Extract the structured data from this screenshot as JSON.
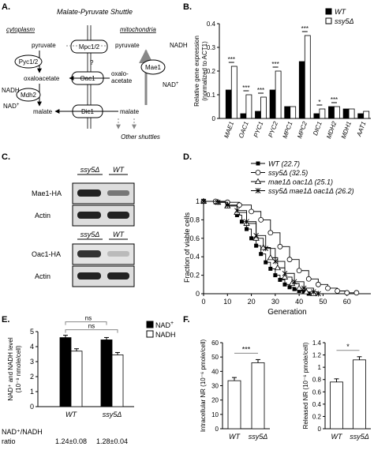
{
  "panels": {
    "A": {
      "letter": "A.",
      "title": "Malate-Pyruvate Shuttle",
      "cytoplasm": "cytoplasm",
      "mitochondria": "mitochondria",
      "pyruvate": "pyruvate",
      "oxaloacetate": "oxaloacetate",
      "malate": "malate",
      "nadh": "NADH",
      "nad": "NAD",
      "nad_sup": "+",
      "mpc": "Mpc1/2",
      "pyc": "Pyc1/2",
      "oac": "Oac1",
      "mdh": "Mdh2",
      "mae": "Mae1",
      "dic": "Dic1",
      "question": "?",
      "oxalo_m1": "oxalo-",
      "oxalo_m2": "acetate",
      "other_shuttles": "Other shuttles"
    },
    "C": {
      "letter": "C.",
      "lane1": "ssy5Δ",
      "lane2": "WT",
      "rows": [
        "Mae1-HA",
        "Actin",
        "Oac1-HA",
        "Actin"
      ]
    },
    "F": {
      "letter": "F."
    }
  },
  "colors": {
    "black": "#000000",
    "white": "#ffffff",
    "axis": "#000000"
  },
  "chart_data": [
    {
      "panel": "B",
      "type": "bar",
      "letter": "B.",
      "ylabel": "Relative gene expression (normalized to ACT1)",
      "ylabel_l1": "Relative gene expression",
      "ylabel_l2": "(normalized to ACT1)",
      "ylim": [
        0,
        0.4
      ],
      "yticks": [
        "0",
        "0.1",
        "0.2",
        "0.3",
        "0.4"
      ],
      "categories": [
        "MAE1",
        "OAC1",
        "PYC1",
        "PYC2",
        "MPC1",
        "MPC2",
        "DIC1",
        "MDH2",
        "MDH1",
        "AAT1"
      ],
      "series": [
        {
          "name": "WT",
          "color": "#000000",
          "values": [
            0.12,
            0.02,
            0.03,
            0.12,
            0.05,
            0.24,
            0.02,
            0.05,
            0.04,
            0.02
          ]
        },
        {
          "name": "ssy5Δ",
          "color": "#ffffff",
          "values": [
            0.22,
            0.1,
            0.09,
            0.2,
            0.05,
            0.35,
            0.04,
            0.05,
            0.04,
            0.03
          ]
        }
      ],
      "significance": [
        "***",
        "***",
        "***",
        "***",
        "",
        "***",
        "*",
        "***",
        "",
        ""
      ]
    },
    {
      "panel": "D",
      "type": "line",
      "letter": "D.",
      "xlabel": "Generation",
      "ylabel": "Fraction of viable cells",
      "xlim": [
        0,
        70
      ],
      "ylim": [
        0,
        1
      ],
      "xticks": [
        "0",
        "10",
        "20",
        "30",
        "40",
        "50",
        "60"
      ],
      "yticks": [
        "0",
        "0.2",
        "0.4",
        "0.6",
        "0.8",
        "1"
      ],
      "series": [
        {
          "name": "WT",
          "median": "(22.7)",
          "marker": "square",
          "x": [
            0,
            5,
            10,
            14,
            16,
            18,
            20,
            22,
            24,
            26,
            28,
            30,
            32,
            34,
            36,
            38,
            40,
            42,
            44
          ],
          "y": [
            1,
            0.99,
            0.95,
            0.85,
            0.78,
            0.7,
            0.6,
            0.52,
            0.43,
            0.34,
            0.27,
            0.2,
            0.15,
            0.1,
            0.07,
            0.05,
            0.03,
            0.02,
            0
          ]
        },
        {
          "name": "ssy5Δ",
          "median": "(32.5)",
          "marker": "circle",
          "x": [
            0,
            5,
            10,
            15,
            20,
            24,
            28,
            32,
            36,
            40,
            44,
            48,
            52,
            56,
            60,
            64
          ],
          "y": [
            1,
            1,
            0.99,
            0.96,
            0.89,
            0.8,
            0.66,
            0.51,
            0.37,
            0.25,
            0.16,
            0.1,
            0.06,
            0.03,
            0.01,
            0.01
          ]
        },
        {
          "name": "mae1Δ oac1Δ",
          "median": "(25.1)",
          "marker": "triangle",
          "x": [
            0,
            6,
            10,
            14,
            18,
            22,
            25,
            28,
            31,
            34,
            37,
            40,
            43,
            46
          ],
          "y": [
            1,
            0.99,
            0.95,
            0.88,
            0.76,
            0.6,
            0.5,
            0.39,
            0.28,
            0.18,
            0.11,
            0.06,
            0.02,
            0
          ]
        },
        {
          "name": "ssy5Δ mae1Δ oac1Δ",
          "median": "(26.2)",
          "marker": "star",
          "x": [
            0,
            6,
            10,
            14,
            18,
            22,
            26,
            30,
            34,
            38,
            42,
            46,
            48
          ],
          "y": [
            1,
            0.99,
            0.96,
            0.9,
            0.78,
            0.63,
            0.49,
            0.35,
            0.22,
            0.13,
            0.06,
            0.02,
            0
          ]
        }
      ]
    },
    {
      "panel": "E",
      "type": "bar",
      "letter": "E.",
      "ylabel_l1": "NAD⁺ and NADH level",
      "ylabel_l2": "(10⁻⁸ nmole/cell)",
      "ylim": [
        0,
        5
      ],
      "yticks": [
        "0",
        "1",
        "2",
        "3",
        "4",
        "5"
      ],
      "categories": [
        "WT",
        "ssy5Δ"
      ],
      "series": [
        {
          "name": "NAD",
          "sup": "+",
          "color": "#000000",
          "values": [
            4.6,
            4.45
          ]
        },
        {
          "name": "NADH",
          "sup": "",
          "color": "#ffffff",
          "values": [
            3.7,
            3.45
          ]
        }
      ],
      "comparisons": [
        "ns",
        "ns"
      ],
      "ratio_label_l1": "NAD⁺/NADH",
      "ratio_label_l2": "ratio",
      "ratios": [
        "1.24±0.08",
        "1.28±0.04"
      ]
    },
    {
      "panel": "F-left",
      "type": "bar",
      "ylabel": "Intracellular NR (10⁻⁶ pmole/cell)",
      "ylim": [
        0,
        60
      ],
      "yticks": [
        "0",
        "10",
        "20",
        "30",
        "40",
        "50",
        "60"
      ],
      "categories": [
        "WT",
        "ssy5Δ"
      ],
      "values": [
        33.5,
        46
      ],
      "significance": "***"
    },
    {
      "panel": "F-right",
      "type": "bar",
      "ylabel": "Released NR (10⁻⁶ pmole/cell)",
      "ylim": [
        0,
        1.4
      ],
      "yticks": [
        "0",
        "0.2",
        "0.4",
        "0.6",
        "0.8",
        "1",
        "1.2",
        "1.4"
      ],
      "categories": [
        "WT",
        "ssy5Δ"
      ],
      "values": [
        0.76,
        1.12
      ],
      "significance": "*"
    }
  ]
}
